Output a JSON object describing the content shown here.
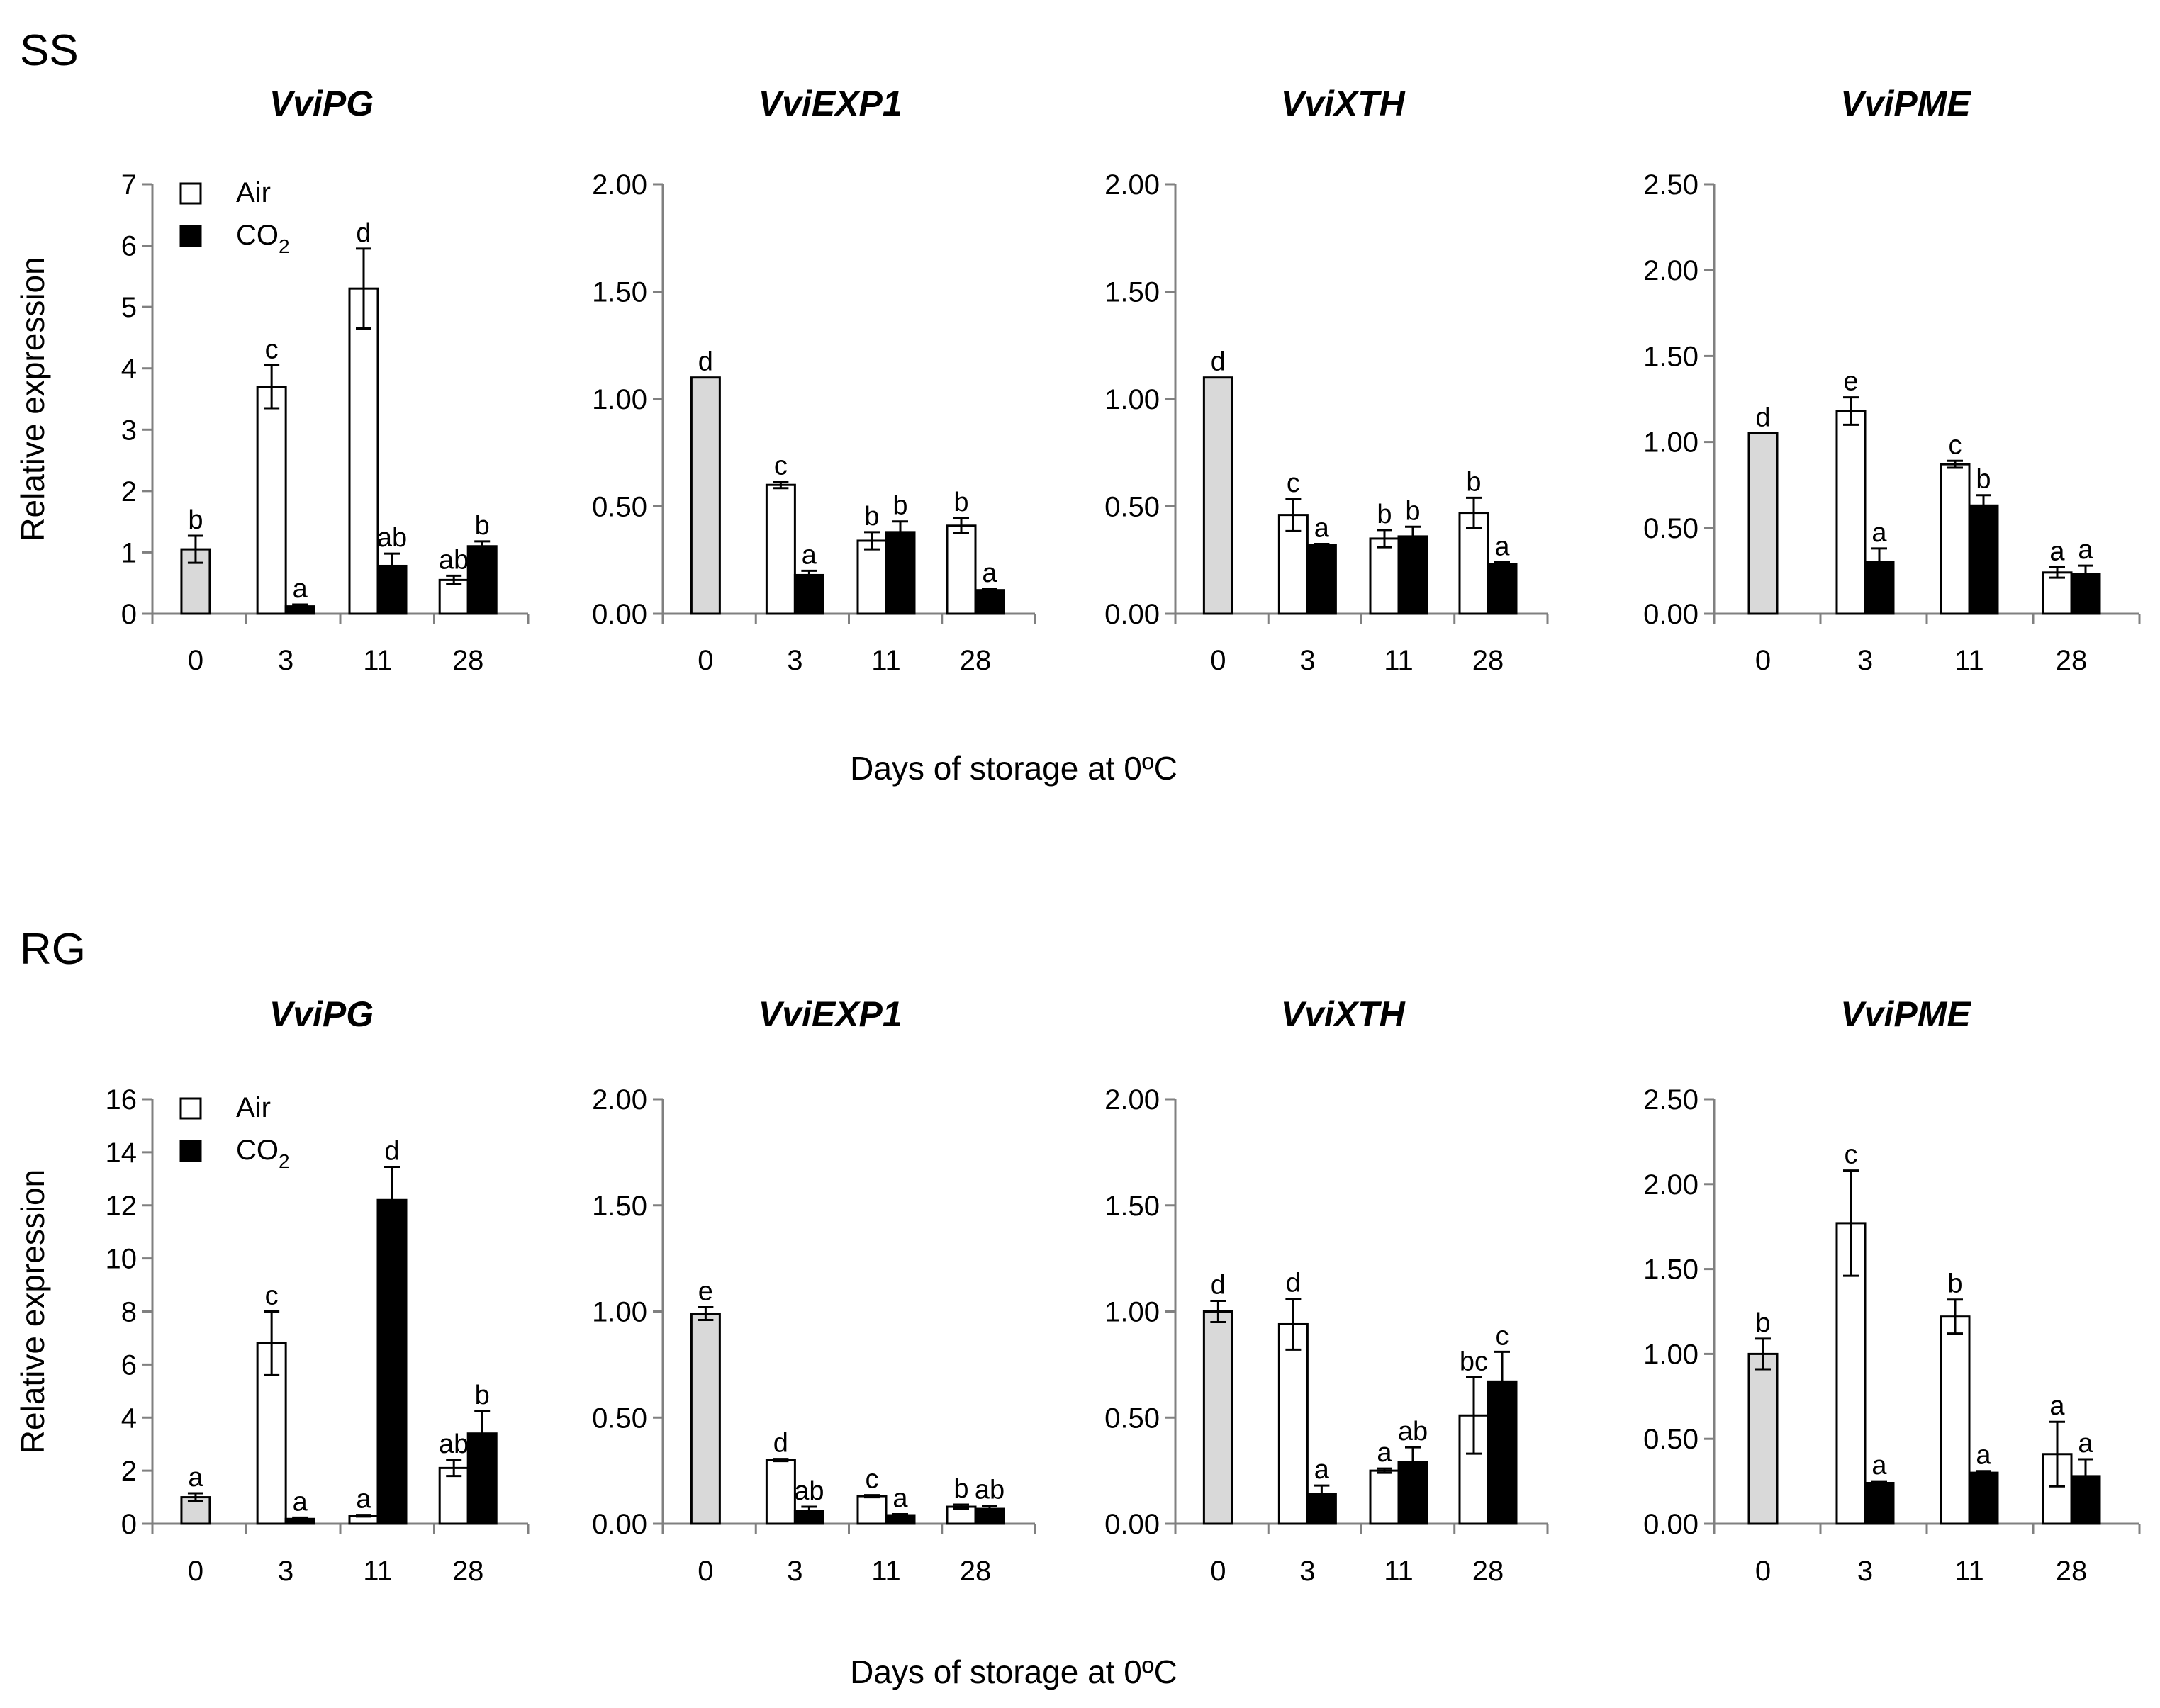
{
  "colors": {
    "control_bar": "#d9d9d9",
    "air_bar": "#ffffff",
    "co2_bar": "#000000",
    "axis": "#808080",
    "text": "#000000"
  },
  "legend": {
    "air": "Air",
    "co2": "CO",
    "co2_subscript": "2"
  },
  "y_axis_title": "Relative expression",
  "groups": [
    {
      "label": "SS",
      "x_axis_title": "Days of storage at 0ºC"
    },
    {
      "label": "RG",
      "x_axis_title": "Days of storage at 0ºC"
    }
  ],
  "chart_data": [
    {
      "type": "bar",
      "group": "SS",
      "title": "VviPG",
      "categories": [
        "0",
        "3",
        "11",
        "28"
      ],
      "ylim": [
        0,
        7
      ],
      "yticks": [
        "0",
        "1",
        "2",
        "3",
        "4",
        "5",
        "6",
        "7"
      ],
      "show_legend": true,
      "control": {
        "value": 1.05,
        "error": 0.22,
        "label": "b"
      },
      "series": [
        {
          "name": "Air",
          "values": [
            null,
            3.7,
            5.3,
            0.55
          ],
          "errors": [
            null,
            0.35,
            0.65,
            0.07
          ],
          "labels": [
            "",
            "c",
            "d",
            "ab"
          ]
        },
        {
          "name": "CO2",
          "values": [
            null,
            0.12,
            0.78,
            1.1
          ],
          "errors": [
            null,
            0.03,
            0.2,
            0.08
          ],
          "labels": [
            "",
            "a",
            "ab",
            "b"
          ]
        }
      ]
    },
    {
      "type": "bar",
      "group": "SS",
      "title": "VviEXP1",
      "categories": [
        "0",
        "3",
        "11",
        "28"
      ],
      "ylim": [
        0,
        2
      ],
      "yticks": [
        "0.00",
        "0.50",
        "1.00",
        "1.50",
        "2.00"
      ],
      "show_legend": false,
      "control": {
        "value": 1.1,
        "error": 0,
        "label": "d"
      },
      "series": [
        {
          "name": "Air",
          "values": [
            null,
            0.6,
            0.34,
            0.41
          ],
          "errors": [
            null,
            0.015,
            0.04,
            0.035
          ],
          "labels": [
            "",
            "c",
            "b",
            "b"
          ]
        },
        {
          "name": "CO2",
          "values": [
            null,
            0.18,
            0.38,
            0.11
          ],
          "errors": [
            null,
            0.02,
            0.05,
            0.005
          ],
          "labels": [
            "",
            "a",
            "b",
            "a"
          ]
        }
      ]
    },
    {
      "type": "bar",
      "group": "SS",
      "title": "VviXTH",
      "categories": [
        "0",
        "3",
        "11",
        "28"
      ],
      "ylim": [
        0,
        2
      ],
      "yticks": [
        "0.00",
        "0.50",
        "1.00",
        "1.50",
        "2.00"
      ],
      "show_legend": false,
      "control": {
        "value": 1.1,
        "error": 0,
        "label": "d"
      },
      "series": [
        {
          "name": "Air",
          "values": [
            null,
            0.46,
            0.35,
            0.47
          ],
          "errors": [
            null,
            0.075,
            0.04,
            0.07
          ],
          "labels": [
            "",
            "c",
            "b",
            "b"
          ]
        },
        {
          "name": "CO2",
          "values": [
            null,
            0.32,
            0.36,
            0.23
          ],
          "errors": [
            null,
            0.005,
            0.045,
            0.01
          ],
          "labels": [
            "",
            "a",
            "b",
            "a"
          ]
        }
      ]
    },
    {
      "type": "bar",
      "group": "SS",
      "title": "VviPME",
      "categories": [
        "0",
        "3",
        "11",
        "28"
      ],
      "ylim": [
        0,
        2.5
      ],
      "yticks": [
        "0.00",
        "0.50",
        "1.00",
        "1.50",
        "2.00",
        "2.50"
      ],
      "show_legend": false,
      "control": {
        "value": 1.05,
        "error": 0,
        "label": "d"
      },
      "series": [
        {
          "name": "Air",
          "values": [
            null,
            1.18,
            0.87,
            0.24
          ],
          "errors": [
            null,
            0.08,
            0.02,
            0.03
          ],
          "labels": [
            "",
            "e",
            "c",
            "a"
          ]
        },
        {
          "name": "CO2",
          "values": [
            null,
            0.3,
            0.63,
            0.23
          ],
          "errors": [
            null,
            0.08,
            0.06,
            0.05
          ],
          "labels": [
            "",
            "a",
            "b",
            "a"
          ]
        }
      ]
    },
    {
      "type": "bar",
      "group": "RG",
      "title": "VviPG",
      "categories": [
        "0",
        "3",
        "11",
        "28"
      ],
      "ylim": [
        0,
        16
      ],
      "yticks": [
        "0",
        "2",
        "4",
        "6",
        "8",
        "10",
        "12",
        "14",
        "16"
      ],
      "show_legend": true,
      "control": {
        "value": 1.0,
        "error": 0.15,
        "label": "a"
      },
      "series": [
        {
          "name": "Air",
          "values": [
            null,
            6.8,
            0.3,
            2.1
          ],
          "errors": [
            null,
            1.2,
            0.03,
            0.3
          ],
          "labels": [
            "",
            "c",
            "a",
            "ab"
          ]
        },
        {
          "name": "CO2",
          "values": [
            null,
            0.18,
            12.2,
            3.4
          ],
          "errors": [
            null,
            0.05,
            1.25,
            0.85
          ],
          "labels": [
            "",
            "a",
            "d",
            "b"
          ]
        }
      ]
    },
    {
      "type": "bar",
      "group": "RG",
      "title": "VviEXP1",
      "categories": [
        "0",
        "3",
        "11",
        "28"
      ],
      "ylim": [
        0,
        2
      ],
      "yticks": [
        "0.00",
        "0.50",
        "1.00",
        "1.50",
        "2.00"
      ],
      "show_legend": false,
      "control": {
        "value": 0.99,
        "error": 0.03,
        "label": "e"
      },
      "series": [
        {
          "name": "Air",
          "values": [
            null,
            0.3,
            0.13,
            0.08
          ],
          "errors": [
            null,
            0.005,
            0.005,
            0.01
          ],
          "labels": [
            "",
            "d",
            "c",
            "b"
          ]
        },
        {
          "name": "CO2",
          "values": [
            null,
            0.06,
            0.04,
            0.07
          ],
          "errors": [
            null,
            0.02,
            0.005,
            0.015
          ],
          "labels": [
            "",
            "ab",
            "a",
            "ab"
          ]
        }
      ]
    },
    {
      "type": "bar",
      "group": "RG",
      "title": "VviXTH",
      "categories": [
        "0",
        "3",
        "11",
        "28"
      ],
      "ylim": [
        0,
        2
      ],
      "yticks": [
        "0.00",
        "0.50",
        "1.00",
        "1.50",
        "2.00"
      ],
      "show_legend": false,
      "control": {
        "value": 1.0,
        "error": 0.05,
        "label": "d"
      },
      "series": [
        {
          "name": "Air",
          "values": [
            null,
            0.94,
            0.25,
            0.51
          ],
          "errors": [
            null,
            0.12,
            0.01,
            0.18
          ],
          "labels": [
            "",
            "d",
            "a",
            "bc"
          ]
        },
        {
          "name": "CO2",
          "values": [
            null,
            0.14,
            0.29,
            0.67
          ],
          "errors": [
            null,
            0.04,
            0.07,
            0.14
          ],
          "labels": [
            "",
            "a",
            "ab",
            "c"
          ]
        }
      ]
    },
    {
      "type": "bar",
      "group": "RG",
      "title": "VviPME",
      "categories": [
        "0",
        "3",
        "11",
        "28"
      ],
      "ylim": [
        0,
        2.5
      ],
      "yticks": [
        "0.00",
        "0.50",
        "1.00",
        "1.50",
        "2.00",
        "2.50"
      ],
      "show_legend": false,
      "control": {
        "value": 1.0,
        "error": 0.09,
        "label": "b"
      },
      "series": [
        {
          "name": "Air",
          "values": [
            null,
            1.77,
            1.22,
            0.41
          ],
          "errors": [
            null,
            0.31,
            0.1,
            0.19
          ],
          "labels": [
            "",
            "c",
            "b",
            "a"
          ]
        },
        {
          "name": "CO2",
          "values": [
            null,
            0.24,
            0.3,
            0.28
          ],
          "errors": [
            null,
            0.01,
            0.01,
            0.1
          ],
          "labels": [
            "",
            "a",
            "a",
            "a"
          ]
        }
      ]
    }
  ]
}
